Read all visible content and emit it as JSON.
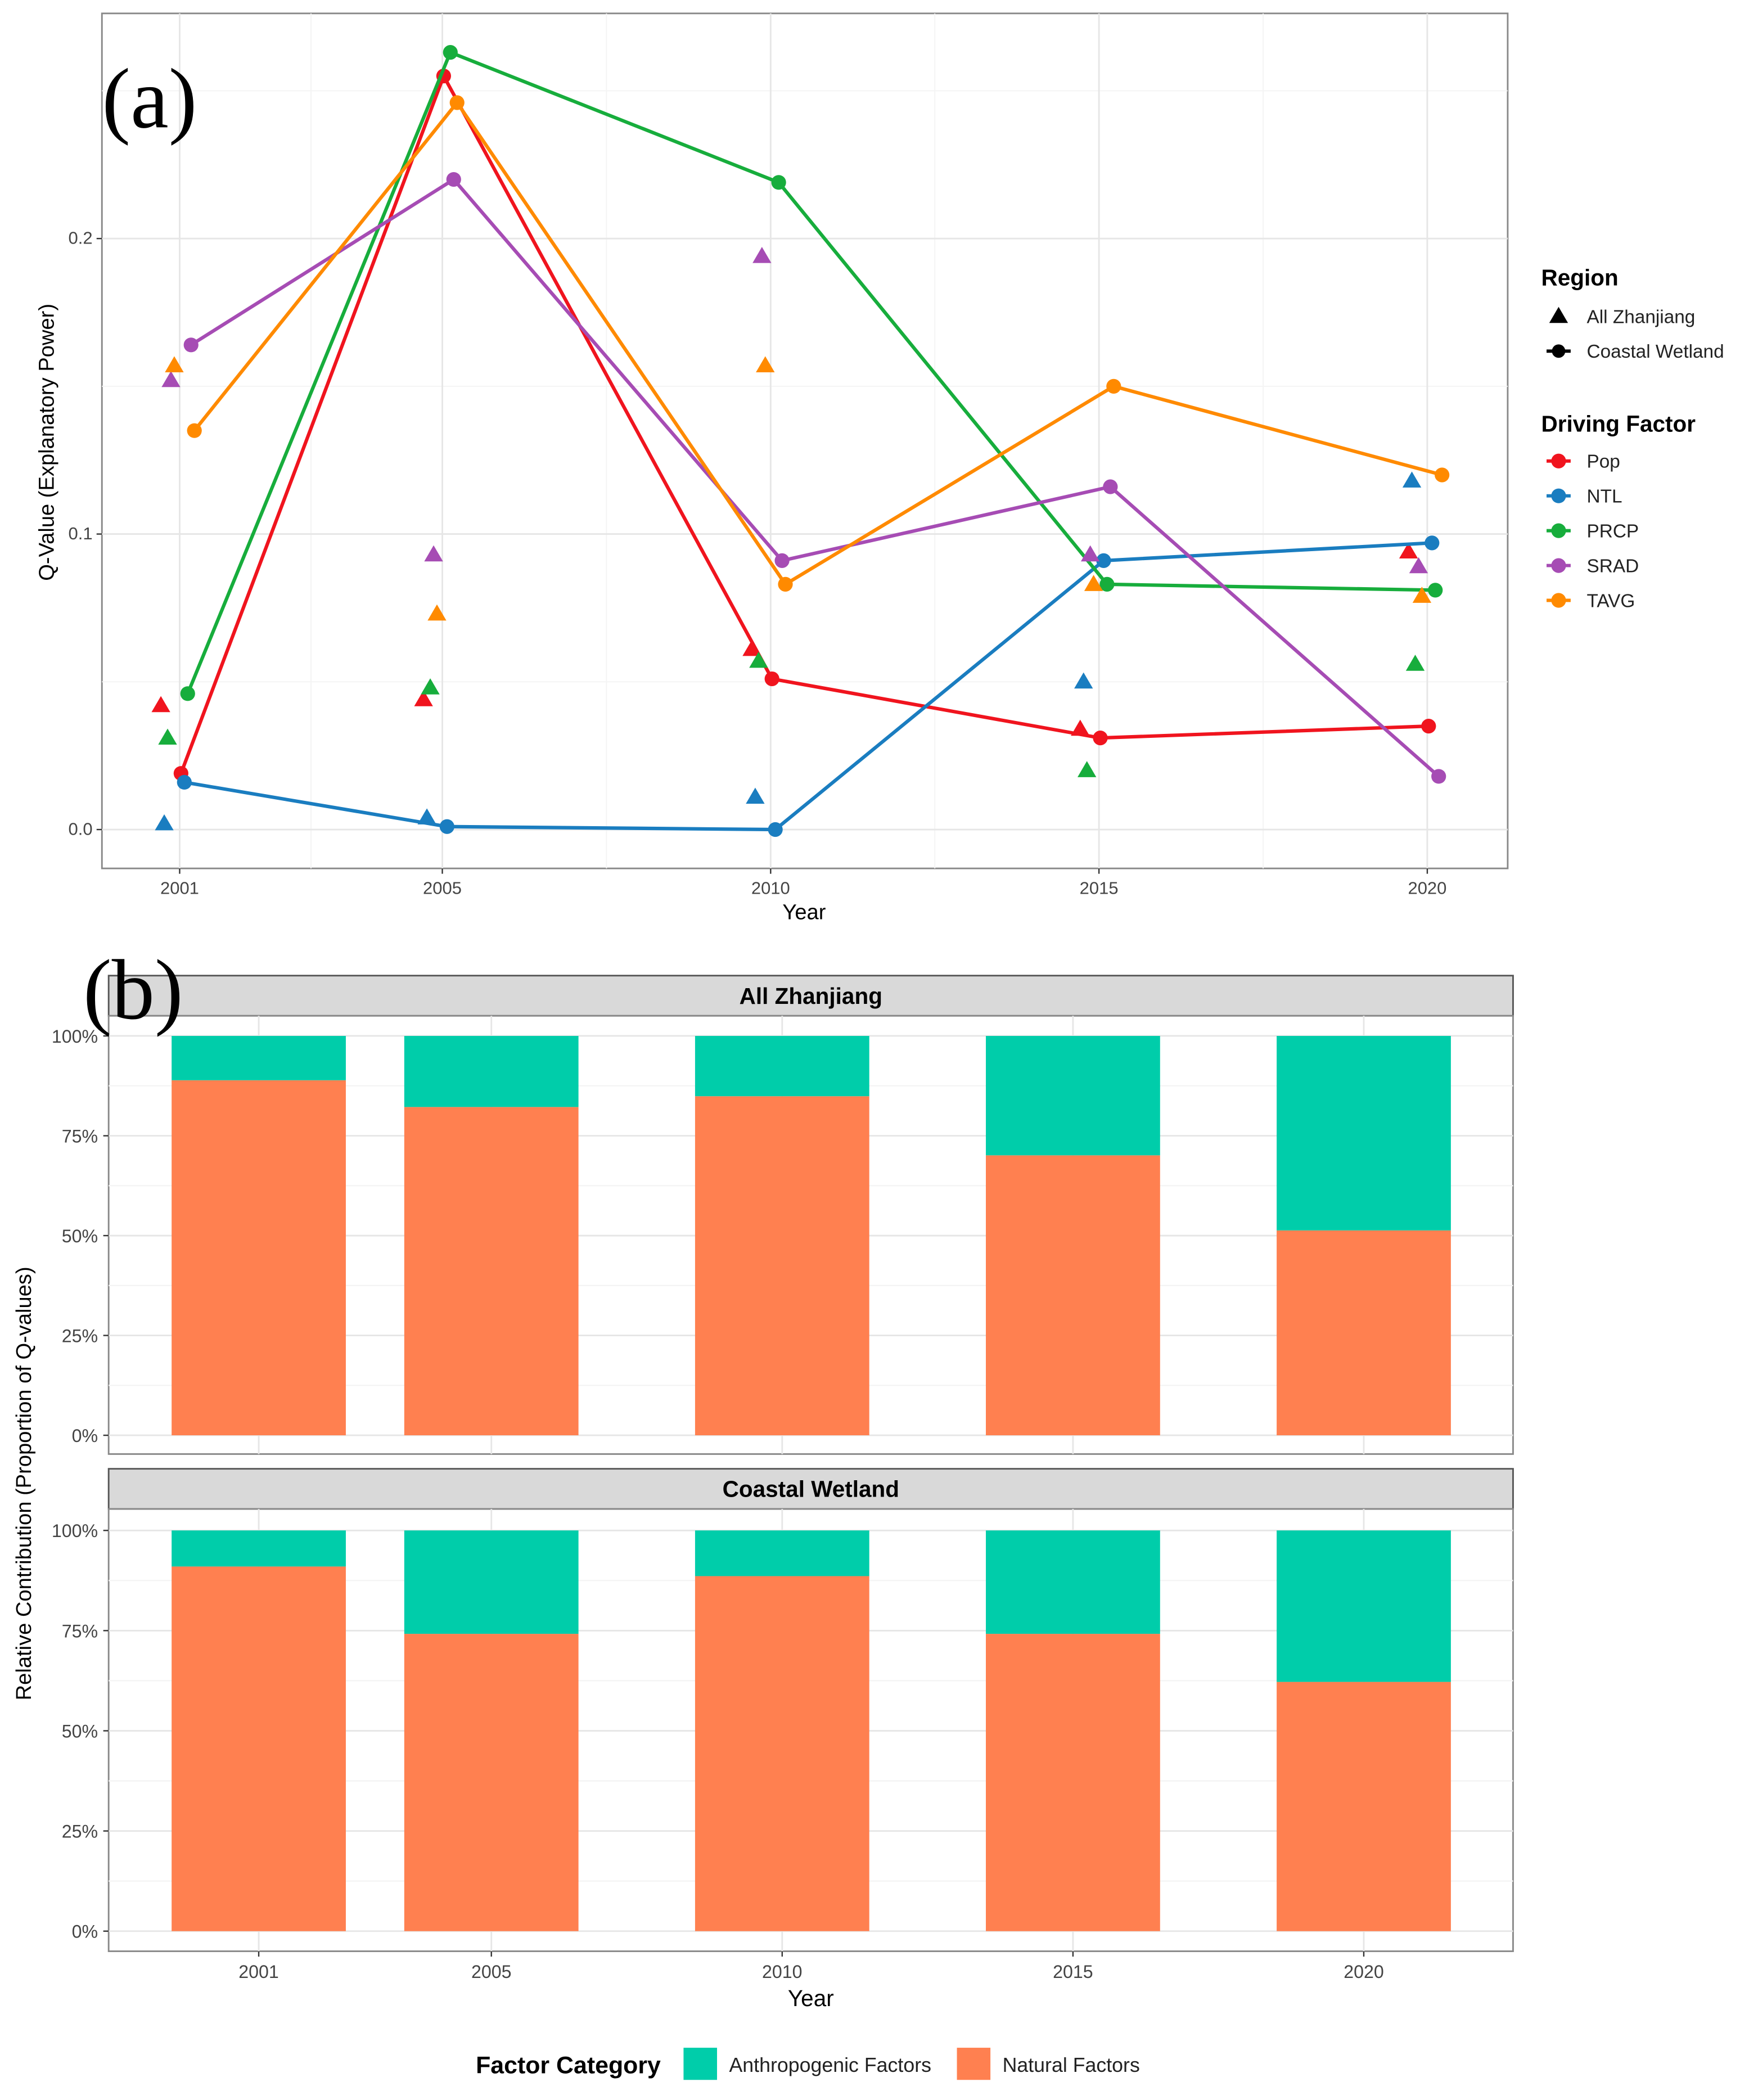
{
  "chart_data": [
    {
      "panel_label": "(a)",
      "type": "line",
      "xlabel": "Year",
      "ylabel": "Q-Value (Explanatory Power)",
      "x": [
        2001,
        2005,
        2010,
        2015,
        2020
      ],
      "x_tick_labels": [
        "2001",
        "2005",
        "2010",
        "2015",
        "2020"
      ],
      "y_ticks": [
        0.0,
        0.1,
        0.2
      ],
      "y_tick_labels": [
        "0.0",
        "0.1",
        "0.2"
      ],
      "ylim": [
        -0.012,
        0.277
      ],
      "grid": true,
      "legend_region_title": "Region",
      "regions": [
        {
          "name": "All Zhanjiang",
          "shape": "triangle",
          "lines": false
        },
        {
          "name": "Coastal Wetland",
          "shape": "circle",
          "lines": true
        }
      ],
      "legend_factor_title": "Driving Factor",
      "legend_placement": "right",
      "series": [
        {
          "name": "Pop",
          "color": "#F0141E",
          "All Zhanjiang": [
            0.042,
            0.044,
            0.061,
            0.034,
            0.094
          ],
          "Coastal Wetland": [
            0.019,
            0.255,
            0.051,
            0.031,
            0.035
          ]
        },
        {
          "name": "NTL",
          "color": "#1A7DC0",
          "All Zhanjiang": [
            0.002,
            0.004,
            0.011,
            0.05,
            0.118
          ],
          "Coastal Wetland": [
            0.016,
            0.001,
            0.0,
            0.091,
            0.097
          ]
        },
        {
          "name": "PRCP",
          "color": "#17AD3C",
          "All Zhanjiang": [
            0.031,
            0.048,
            0.057,
            0.02,
            0.056
          ],
          "Coastal Wetland": [
            0.046,
            0.263,
            0.219,
            0.083,
            0.081
          ]
        },
        {
          "name": "SRAD",
          "color": "#A64CB4",
          "All Zhanjiang": [
            0.152,
            0.093,
            0.194,
            0.093,
            0.089
          ],
          "Coastal Wetland": [
            0.164,
            0.22,
            0.091,
            0.116,
            0.018
          ]
        },
        {
          "name": "TAVG",
          "color": "#FF8A00",
          "All Zhanjiang": [
            0.157,
            0.073,
            0.157,
            0.083,
            0.079
          ],
          "Coastal Wetland": [
            0.135,
            0.246,
            0.083,
            0.15,
            0.12
          ]
        }
      ]
    },
    {
      "panel_label": "(b)",
      "type": "bar",
      "stacked": true,
      "xlabel": "Year",
      "ylabel": "Relative Contribution (Proportion of Q-values)",
      "categories": [
        2001,
        2005,
        2010,
        2015,
        2020
      ],
      "x_tick_labels": [
        "2001",
        "2005",
        "2010",
        "2015",
        "2020"
      ],
      "y_tick_labels": [
        "0%",
        "25%",
        "50%",
        "75%",
        "100%"
      ],
      "ylim": [
        0,
        1
      ],
      "legend_title": "Factor Category",
      "legend_placement": "bottom",
      "categories_legend": [
        {
          "name": "Anthropogenic Factors",
          "color": "#00CDAA"
        },
        {
          "name": "Natural Factors",
          "color": "#FF8050"
        }
      ],
      "facets": [
        {
          "name": "All Zhanjiang",
          "natural": [
            0.889,
            0.822,
            0.849,
            0.701,
            0.513
          ],
          "anthropogenic": [
            0.111,
            0.178,
            0.151,
            0.299,
            0.487
          ]
        },
        {
          "name": "Coastal Wetland",
          "natural": [
            0.91,
            0.742,
            0.886,
            0.742,
            0.622
          ],
          "anthropogenic": [
            0.09,
            0.258,
            0.114,
            0.258,
            0.378
          ]
        }
      ]
    }
  ]
}
